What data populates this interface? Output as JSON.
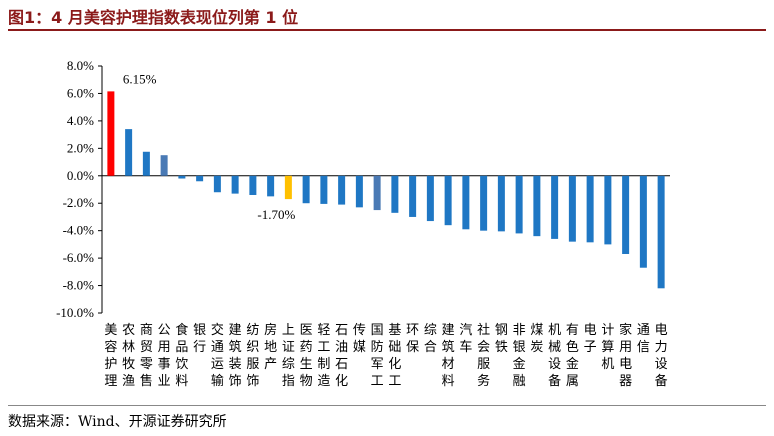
{
  "title": "图1：4 月美容护理指数表现位列第 1 位",
  "source": "数据来源：Wind、开源证券研究所",
  "colors": {
    "title": "#8b1a1a",
    "default_bar": "#1f77c4",
    "highlight_max": "#ff0000",
    "highlight_mid": "#ffc000",
    "alt_bar": "#4a7ab5"
  },
  "chart_data": {
    "type": "bar",
    "title": "",
    "xlabel": "",
    "ylabel": "",
    "ylim": [
      -10,
      8
    ],
    "yticks": [
      "8.0%",
      "6.0%",
      "4.0%",
      "2.0%",
      "0.0%",
      "-2.0%",
      "-4.0%",
      "-6.0%",
      "-8.0%",
      "-10.0%"
    ],
    "ytick_values": [
      8,
      6,
      4,
      2,
      0,
      -2,
      -4,
      -6,
      -8,
      -10
    ],
    "grid": false,
    "legend": "none",
    "categories": [
      "美容护理",
      "农林牧渔",
      "商贸零售",
      "公用事业",
      "食品饮料",
      "银行",
      "交通运输",
      "建筑装饰",
      "纺织服饰",
      "房地产",
      "上证综指",
      "医药生物",
      "轻工制造",
      "石油石化",
      "传媒",
      "国防军工",
      "基础化工",
      "环保",
      "综合",
      "建筑材料",
      "汽车",
      "社会服务",
      "钢铁",
      "非银金融",
      "煤炭",
      "机械设备",
      "有色金属",
      "电子",
      "计算机",
      "家用电器",
      "通信",
      "电力设备"
    ],
    "values": [
      6.15,
      3.4,
      1.75,
      1.5,
      -0.2,
      -0.4,
      -1.2,
      -1.3,
      -1.4,
      -1.5,
      -1.7,
      -2.0,
      -2.05,
      -2.1,
      -2.3,
      -2.5,
      -2.7,
      -3.0,
      -3.3,
      -3.6,
      -3.9,
      -4.0,
      -4.05,
      -4.2,
      -4.4,
      -4.6,
      -4.8,
      -4.85,
      -5.0,
      -5.7,
      -6.7,
      -8.2
    ],
    "bar_colors": [
      "#ff0000",
      "#1f77c4",
      "#1f77c4",
      "#4a7ab5",
      "#1f77c4",
      "#1f77c4",
      "#1f77c4",
      "#1f77c4",
      "#1f77c4",
      "#1f77c4",
      "#ffc000",
      "#1f77c4",
      "#1f77c4",
      "#1f77c4",
      "#1f77c4",
      "#4a7ab5",
      "#1f77c4",
      "#1f77c4",
      "#1f77c4",
      "#1f77c4",
      "#1f77c4",
      "#1f77c4",
      "#1f77c4",
      "#1f77c4",
      "#1f77c4",
      "#1f77c4",
      "#1f77c4",
      "#1f77c4",
      "#1f77c4",
      "#1f77c4",
      "#1f77c4",
      "#1f77c4"
    ],
    "annotations": [
      {
        "index": 0,
        "text": "6.15%"
      },
      {
        "index": 10,
        "text": "-1.70%"
      }
    ]
  }
}
